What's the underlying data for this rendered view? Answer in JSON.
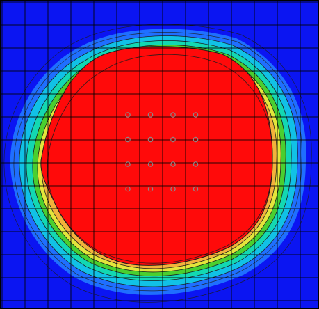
{
  "figure": {
    "type": "contour-field-map",
    "grid": true,
    "grid_color": "#000000",
    "colors": {
      "background_low": "#0b15f2",
      "band_blue_light": "#1f6fff",
      "band_cyan": "#11c3e6",
      "band_teal": "#14d9b1",
      "band_green": "#4ccf2d",
      "band_yellow": "#e7e63c",
      "band_orange": "#f4b13b",
      "high_core": "#ff0a0a",
      "contour_line": "#1c1c1c",
      "marker_stroke": "#8a8a8a"
    },
    "markers": {
      "rows": 4,
      "cols": 4,
      "shape": "circle"
    }
  }
}
